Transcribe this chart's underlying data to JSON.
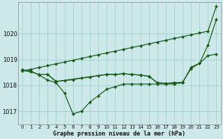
{
  "background_color": "#cde8e8",
  "grid_color": "#9ecece",
  "line_color": "#1a5c1a",
  "title": "Graphe pression niveau de la mer (hPa)",
  "hours": [
    0,
    1,
    2,
    3,
    4,
    5,
    6,
    7,
    8,
    9,
    10,
    11,
    12,
    13,
    14,
    15,
    16,
    17,
    18,
    19,
    20,
    21,
    22,
    23
  ],
  "ylim": [
    1016.5,
    1021.2
  ],
  "yticks": [
    1017,
    1018,
    1019,
    1020
  ],
  "line_straight": [
    1018.55,
    1018.62,
    1018.69,
    1018.76,
    1018.83,
    1018.9,
    1018.97,
    1019.04,
    1019.11,
    1019.18,
    1019.25,
    1019.32,
    1019.39,
    1019.46,
    1019.53,
    1019.6,
    1019.67,
    1019.74,
    1019.81,
    1019.88,
    1019.95,
    1020.02,
    1020.09,
    1021.05
  ],
  "line_dip": [
    1018.6,
    1018.55,
    1018.4,
    1018.2,
    1018.1,
    1017.7,
    1016.9,
    1017.0,
    1017.35,
    1017.6,
    1017.85,
    1017.95,
    1018.05,
    1018.05,
    1018.05,
    1018.05,
    1018.05,
    1018.05,
    1018.05,
    1018.1,
    1018.7,
    1018.85,
    1019.55,
    1020.55
  ],
  "line_mid1": [
    1018.58,
    1018.52,
    1018.42,
    1018.42,
    1018.15,
    1018.18,
    1018.22,
    1018.28,
    1018.32,
    1018.38,
    1018.42,
    1018.42,
    1018.45,
    1018.42,
    1018.4,
    1018.35,
    1018.1,
    1018.08,
    1018.1,
    1018.12,
    1018.65,
    1018.85,
    1019.15,
    1019.2
  ],
  "line_flat": [
    null,
    null,
    null,
    1018.42,
    1018.15,
    null,
    null,
    null,
    null,
    null,
    1018.42,
    1018.42,
    1018.45,
    1018.42,
    1018.4,
    1018.35,
    1018.1,
    1018.08,
    1018.1,
    null,
    null,
    null,
    null,
    null
  ]
}
